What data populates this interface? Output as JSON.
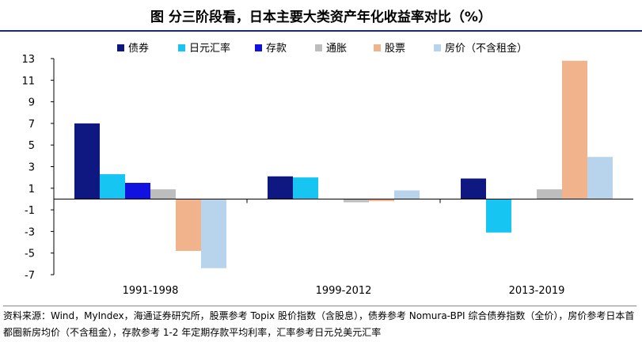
{
  "title": "图  分三阶段看，日本主要大类资产年化收益率对比（%）",
  "source": "资料来源：Wind，MyIndex，海通证券研究所，股票参考 Topix 股价指数（含股息），债券参考 Nomura-BPI 综合债券指数（全价），房价参考日本首都圈新房均价（不含租金），存款参考 1-2 年定期存款平均利率，汇率参考日元兑美元汇率",
  "chart_data": {
    "type": "bar",
    "title": "分三阶段看，日本主要大类资产年化收益率对比（%）",
    "categories": [
      "1991-1998",
      "1999-2012",
      "2013-2019"
    ],
    "series": [
      {
        "name": "债券",
        "color": "#0f1780",
        "values": [
          7.0,
          2.1,
          1.9
        ]
      },
      {
        "name": "日元汇率",
        "color": "#16c5f2",
        "values": [
          2.3,
          2.0,
          -3.1
        ]
      },
      {
        "name": "存款",
        "color": "#1212e0",
        "values": [
          1.5,
          0,
          0
        ]
      },
      {
        "name": "通胀",
        "color": "#bdbdbd",
        "values": [
          0.9,
          -0.3,
          0.9
        ]
      },
      {
        "name": "股票",
        "color": "#f0b38c",
        "values": [
          -4.8,
          -0.2,
          12.8
        ]
      },
      {
        "name": "房价（不含租金）",
        "color": "#b8d4ec",
        "values": [
          -6.4,
          0.8,
          3.9
        ]
      }
    ],
    "yticks": [
      13,
      11,
      9,
      7,
      5,
      3,
      1,
      -1,
      -3,
      -5,
      -7
    ],
    "ytick_labels": [
      "13",
      "11",
      "9",
      "7",
      "5",
      "3",
      "1",
      "-1",
      "-3",
      "-5",
      "-7"
    ],
    "ylim": [
      -7,
      13
    ],
    "xlabel": "",
    "ylabel": "",
    "legend_position": "top"
  }
}
